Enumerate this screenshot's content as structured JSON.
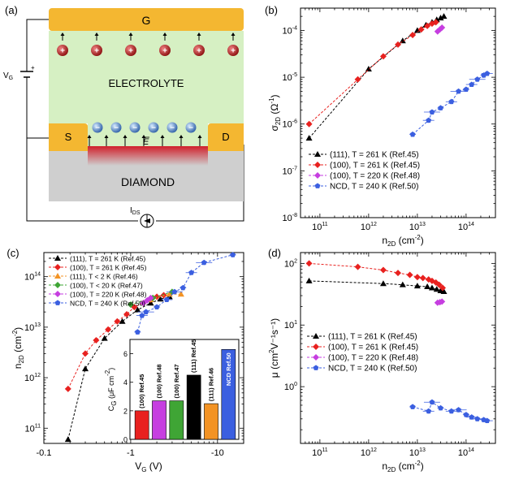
{
  "colors": {
    "electrode": "#f4b731",
    "electrolyte": "#d6f0c3",
    "diamond": "#cfcfcf",
    "channel": "#d0202b",
    "ion_pos": "#b41e1e",
    "ion_neg": "#2e6fb7",
    "s111": "#000000",
    "s100a": "#e8211f",
    "s111b": "#f39324",
    "s100b": "#3fa535",
    "s100c": "#c63ee0",
    "ncd": "#3b5fe0"
  },
  "panel_a": {
    "label": "(a)",
    "gate": "G",
    "electrolyte": "ELECTROLYTE",
    "source": "S",
    "drain": "D",
    "diamond": "DIAMOND",
    "vg_main": "V",
    "vg_sub": "G",
    "field_label": "E",
    "ids_main": "I",
    "ids_sub": "DS",
    "plus": "+",
    "minus": "−"
  },
  "chart_data": [
    {
      "id": "b",
      "type": "scatter",
      "panel_label": "(b)",
      "xlabel_main": "n",
      "xlabel_sub": "2D",
      "xlabel_rest": " (cm",
      "xlabel_sup": "-2",
      "xlabel_end": ")",
      "ylabel_main": "σ",
      "ylabel_sub": "2D",
      "ylabel_rest": " (Ω",
      "ylabel_sup": "-1",
      "ylabel_end": ")",
      "xscale": "log",
      "yscale": "log",
      "xlim": [
        40000000000.0,
        400000000000000.0
      ],
      "ylim": [
        1e-08,
        0.0003
      ],
      "xticks": [
        {
          "v": 100000000000.0,
          "t": "10",
          "e": "11"
        },
        {
          "v": 1000000000000.0,
          "t": "10",
          "e": "12"
        },
        {
          "v": 10000000000000.0,
          "t": "10",
          "e": "13"
        },
        {
          "v": 100000000000000.0,
          "t": "10",
          "e": "14"
        }
      ],
      "yticks": [
        {
          "v": 1e-08,
          "t": "10",
          "e": "-8"
        },
        {
          "v": 1e-07,
          "t": "10",
          "e": "-7"
        },
        {
          "v": 1e-06,
          "t": "10",
          "e": "-6"
        },
        {
          "v": 1e-05,
          "t": "10",
          "e": "-5"
        },
        {
          "v": 0.0001,
          "t": "10",
          "e": "-4"
        }
      ],
      "legend_position": "bottom-left",
      "series": [
        {
          "name": "(111), T = 261 K (Ref.45)",
          "color": "s111",
          "marker": "triangle",
          "x": [
            60000000000.0,
            1000000000000.0,
            5000000000000.0,
            10000000000000.0,
            15000000000000.0,
            20000000000000.0,
            25000000000000.0,
            30000000000000.0,
            35000000000000.0
          ],
          "y": [
            5e-07,
            1.5e-05,
            6e-05,
            0.0001,
            0.00013,
            0.00015,
            0.00017,
            0.000185,
            0.0002
          ]
        },
        {
          "name": "(100), T = 261 K (Ref.45)",
          "color": "s100a",
          "marker": "diamond",
          "x": [
            60000000000.0,
            600000000000.0,
            2000000000000.0,
            4000000000000.0,
            8000000000000.0,
            12000000000000.0,
            16000000000000.0,
            20000000000000.0,
            24000000000000.0
          ],
          "y": [
            1e-06,
            9e-06,
            2.8e-05,
            5e-05,
            8e-05,
            0.000105,
            0.000125,
            0.00014,
            0.00015
          ]
        },
        {
          "name": "(100), T = 220 K (Ref.48)",
          "color": "s100c",
          "marker": "diamond",
          "x": [
            26000000000000.0,
            29000000000000.0,
            32000000000000.0
          ],
          "y": [
            9.5e-05,
            0.000105,
            0.000115
          ]
        },
        {
          "name": "NCD, T = 240 K (Ref.50)",
          "color": "ncd",
          "marker": "pentagon",
          "errors": true,
          "x": [
            8000000000000.0,
            17000000000000.0,
            20000000000000.0,
            30000000000000.0,
            50000000000000.0,
            70000000000000.0,
            100000000000000.0,
            130000000000000.0,
            170000000000000.0,
            230000000000000.0,
            270000000000000.0
          ],
          "y": [
            6e-07,
            1.2e-06,
            1.8e-06,
            2.2e-06,
            3e-06,
            5e-06,
            5.5e-06,
            7e-06,
            9e-06,
            1.1e-05,
            1.2e-05
          ]
        }
      ]
    },
    {
      "id": "c",
      "type": "scatter",
      "panel_label": "(c)",
      "xlabel_main": "V",
      "xlabel_sub": "G",
      "xlabel_rest": " (V)",
      "xlabel_sup": "",
      "xlabel_end": "",
      "ylabel_main": "n",
      "ylabel_sub": "2D",
      "ylabel_rest": " (cm",
      "ylabel_sup": "-2",
      "ylabel_end": ")",
      "xscale": "log-neg",
      "yscale": "log",
      "xlim": [
        0.1,
        20
      ],
      "ylim": [
        50000000000.0,
        300000000000000.0
      ],
      "xticks": [
        {
          "v": 0.1,
          "t": "-0.1",
          "e": ""
        },
        {
          "v": 1,
          "t": "-1",
          "e": ""
        },
        {
          "v": 10,
          "t": "-10",
          "e": ""
        }
      ],
      "yticks": [
        {
          "v": 100000000000.0,
          "t": "10",
          "e": "11"
        },
        {
          "v": 1000000000000.0,
          "t": "10",
          "e": "12"
        },
        {
          "v": 10000000000000.0,
          "t": "10",
          "e": "13"
        },
        {
          "v": 100000000000000.0,
          "t": "10",
          "e": "14"
        }
      ],
      "legend_position": "top-left",
      "series": [
        {
          "name": "(111), T = 261 K (Ref.45)",
          "color": "s111",
          "marker": "triangle",
          "x": [
            0.19,
            0.3,
            0.5,
            0.8,
            1.2,
            1.7,
            2.2,
            2.8
          ],
          "y": [
            60000000000.0,
            1500000000000.0,
            6000000000000.0,
            13000000000000.0,
            22000000000000.0,
            30000000000000.0,
            36000000000000.0,
            40000000000000.0
          ]
        },
        {
          "name": "(100), T = 261 K (Ref.45)",
          "color": "s100a",
          "marker": "diamond",
          "x": [
            0.19,
            0.3,
            0.4,
            0.55,
            0.7,
            0.9,
            1.1,
            1.4,
            1.7,
            2.0,
            2.4
          ],
          "y": [
            600000000000.0,
            3000000000000.0,
            5500000000000.0,
            9000000000000.0,
            13000000000000.0,
            18000000000000.0,
            25000000000000.0,
            30000000000000.0,
            35000000000000.0,
            40000000000000.0,
            43000000000000.0
          ]
        },
        {
          "name": "(111), T < 2 K    (Ref.46)",
          "color": "s111b",
          "marker": "triangle",
          "x": [
            1.7,
            2.8,
            3.8
          ],
          "y": [
            35000000000000.0,
            45000000000000.0,
            45000000000000.0
          ]
        },
        {
          "name": "(100), T < 20 K    (Ref.47)",
          "color": "s100b",
          "marker": "diamond",
          "x": [
            1.0,
            1.8,
            3.0
          ],
          "y": [
            28000000000000.0,
            38000000000000.0,
            50000000000000.0
          ]
        },
        {
          "name": "(100), T = 220 K (Ref.48)",
          "color": "s100c",
          "marker": "diamond",
          "x": [
            1.4,
            1.55,
            1.7
          ],
          "y": [
            30000000000000.0,
            34000000000000.0,
            38000000000000.0
          ]
        },
        {
          "name": "NCD, T = 240 K (Ref.50)",
          "color": "ncd",
          "marker": "pentagon",
          "errors": true,
          "x": [
            1.2,
            1.35,
            1.5,
            2.0,
            2.6,
            3.2,
            4.0,
            5.0,
            7.0,
            15.0
          ],
          "y": [
            8000000000000.0,
            17000000000000.0,
            20000000000000.0,
            25000000000000.0,
            35000000000000.0,
            50000000000000.0,
            60000000000000.0,
            120000000000000.0,
            190000000000000.0,
            270000000000000.0
          ]
        }
      ],
      "inset": {
        "ylabel_main": "C",
        "ylabel_sub": "G",
        "ylabel_rest": " (μF cm",
        "ylabel_sup": "-2",
        "ylabel_end": ")",
        "ylim": [
          0,
          7
        ],
        "yticks": [
          0,
          2,
          4,
          6
        ],
        "bars": [
          {
            "label": "(100) Ref.45",
            "value": 2.0,
            "color": "s100a"
          },
          {
            "label": "(100) Ref.48",
            "value": 2.7,
            "color": "s100c"
          },
          {
            "label": "(100) Ref.47",
            "value": 2.7,
            "color": "s100b"
          },
          {
            "label": "(111) Ref.45",
            "value": 4.5,
            "color": "s111"
          },
          {
            "label": "(111) Ref.46",
            "value": 2.5,
            "color": "s111b"
          },
          {
            "label": "NCD Ref.50",
            "value": 6.3,
            "color": "ncd"
          }
        ]
      }
    },
    {
      "id": "d",
      "type": "scatter",
      "panel_label": "(d)",
      "xlabel_main": "n",
      "xlabel_sub": "2D",
      "xlabel_rest": " (cm",
      "xlabel_sup": "-2",
      "xlabel_end": ")",
      "ylabel_main": "μ",
      "ylabel_sub": "",
      "ylabel_rest": " (cm",
      "ylabel_sup": "2",
      "ylabel_end": "V⁻¹s⁻¹)",
      "xscale": "log",
      "yscale": "log",
      "xlim": [
        40000000000.0,
        400000000000000.0
      ],
      "ylim": [
        0.12,
        150
      ],
      "xticks": [
        {
          "v": 100000000000.0,
          "t": "10",
          "e": "11"
        },
        {
          "v": 1000000000000.0,
          "t": "10",
          "e": "12"
        },
        {
          "v": 10000000000000.0,
          "t": "10",
          "e": "13"
        },
        {
          "v": 100000000000000.0,
          "t": "10",
          "e": "14"
        }
      ],
      "yticks": [
        {
          "v": 1,
          "t": "10",
          "e": "0"
        },
        {
          "v": 10,
          "t": "10",
          "e": "1"
        },
        {
          "v": 100,
          "t": "10",
          "e": "2"
        }
      ],
      "legend_position": "middle-left",
      "series": [
        {
          "name": "(111), T = 261 K (Ref.45)",
          "color": "s111",
          "marker": "triangle",
          "x": [
            60000000000.0,
            2000000000000.0,
            5000000000000.0,
            10000000000000.0,
            16000000000000.0,
            20000000000000.0,
            25000000000000.0,
            30000000000000.0,
            35000000000000.0
          ],
          "y": [
            52,
            47,
            45,
            43,
            42,
            40,
            38,
            36,
            35
          ]
        },
        {
          "name": "(100), T = 261 K (Ref.45)",
          "color": "s100a",
          "marker": "diamond",
          "x": [
            60000000000.0,
            600000000000.0,
            2000000000000.0,
            4000000000000.0,
            7000000000000.0,
            10000000000000.0,
            13000000000000.0,
            17000000000000.0,
            20000000000000.0,
            24000000000000.0,
            28000000000000.0,
            33000000000000.0
          ],
          "y": [
            100,
            88,
            78,
            70,
            65,
            60,
            58,
            55,
            52,
            49,
            45,
            40
          ]
        },
        {
          "name": "(100), T = 220 K (Ref.48)",
          "color": "s100c",
          "marker": "diamond",
          "x": [
            26000000000000.0,
            29000000000000.0,
            32000000000000.0
          ],
          "y": [
            23,
            23.5,
            24
          ]
        },
        {
          "name": "NCD, T = 240 K (Ref.50)",
          "color": "ncd",
          "marker": "pentagon",
          "errors": true,
          "x": [
            8000000000000.0,
            17000000000000.0,
            20000000000000.0,
            30000000000000.0,
            50000000000000.0,
            70000000000000.0,
            100000000000000.0,
            130000000000000.0,
            170000000000000.0,
            230000000000000.0,
            270000000000000.0
          ],
          "y": [
            0.47,
            0.4,
            0.56,
            0.45,
            0.4,
            0.42,
            0.35,
            0.32,
            0.3,
            0.29,
            0.28
          ]
        }
      ]
    }
  ]
}
